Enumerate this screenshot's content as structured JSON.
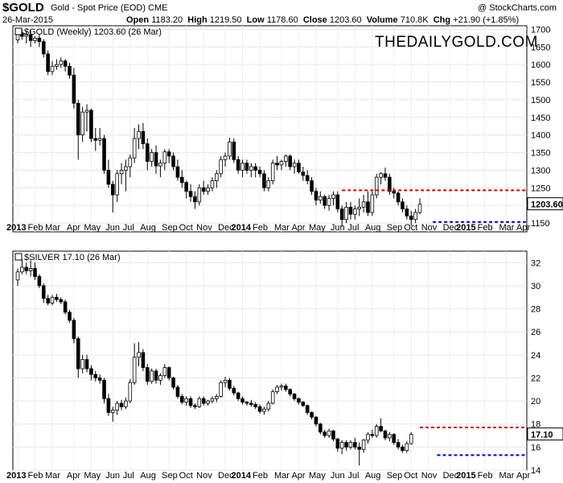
{
  "header": {
    "symbol": "$GOLD",
    "description": "Gold - Spot Price (EOD) CME",
    "copyright": "@ StockCharts.com",
    "date": "26-Mar-2015",
    "open_label": "Open",
    "open": "1183.20",
    "high_label": "High",
    "high": "1219.50",
    "low_label": "Low",
    "low": "1178.60",
    "close_label": "Close",
    "close": "1203.60",
    "volume_label": "Volume",
    "volume": "710.8K",
    "chg_label": "Chg",
    "chg": "+21.90 (+1.85%)"
  },
  "colors": {
    "up": "#ffffff",
    "down": "#000000",
    "resistance": "#cc0000",
    "support": "#0000cc",
    "grid": "#e6e6e6"
  },
  "chart_data": [
    {
      "type": "candlestick",
      "legend": "$GOLD (Weekly) 1203.60 (26 Mar)",
      "watermark": "THEDAILYGOLD.COM",
      "last_value_label": "1203.60",
      "ylim": [
        1125,
        1710
      ],
      "yticks": [
        1150,
        1200,
        1250,
        1300,
        1350,
        1400,
        1450,
        1500,
        1550,
        1600,
        1650,
        1700
      ],
      "x_labels": [
        "2013",
        "Feb",
        "Mar",
        "Apr",
        "May",
        "Jun",
        "Jul",
        "Aug",
        "Sep",
        "Oct",
        "Nov",
        "Dec",
        "2014",
        "Feb",
        "Mar",
        "Apr",
        "May",
        "Jun",
        "Jul",
        "Aug",
        "Sep",
        "Oct",
        "Nov",
        "Dec",
        "2015",
        "Feb",
        "Mar",
        "Apr"
      ],
      "resistance": 1243,
      "support": 1153,
      "ohlc": [
        [
          1670,
          1695,
          1660,
          1690
        ],
        [
          1690,
          1700,
          1670,
          1680
        ],
        [
          1680,
          1695,
          1660,
          1685
        ],
        [
          1685,
          1696,
          1650,
          1668
        ],
        [
          1668,
          1680,
          1660,
          1675
        ],
        [
          1675,
          1685,
          1650,
          1665
        ],
        [
          1665,
          1672,
          1620,
          1630
        ],
        [
          1630,
          1640,
          1570,
          1580
        ],
        [
          1580,
          1610,
          1570,
          1595
        ],
        [
          1595,
          1615,
          1585,
          1600
        ],
        [
          1600,
          1620,
          1590,
          1610
        ],
        [
          1610,
          1615,
          1580,
          1595
        ],
        [
          1595,
          1605,
          1560,
          1570
        ],
        [
          1570,
          1590,
          1475,
          1490
        ],
        [
          1490,
          1500,
          1330,
          1400
        ],
        [
          1400,
          1480,
          1380,
          1465
        ],
        [
          1465,
          1487,
          1410,
          1470
        ],
        [
          1470,
          1475,
          1380,
          1390
        ],
        [
          1390,
          1420,
          1355,
          1385
        ],
        [
          1385,
          1420,
          1370,
          1390
        ],
        [
          1390,
          1400,
          1290,
          1300
        ],
        [
          1300,
          1330,
          1250,
          1260
        ],
        [
          1260,
          1270,
          1180,
          1230
        ],
        [
          1230,
          1300,
          1210,
          1290
        ],
        [
          1290,
          1320,
          1260,
          1300
        ],
        [
          1300,
          1330,
          1240,
          1310
        ],
        [
          1310,
          1345,
          1280,
          1335
        ],
        [
          1335,
          1420,
          1320,
          1390
        ],
        [
          1390,
          1430,
          1360,
          1410
        ],
        [
          1410,
          1434,
          1360,
          1375
        ],
        [
          1375,
          1390,
          1300,
          1325
        ],
        [
          1325,
          1360,
          1310,
          1350
        ],
        [
          1350,
          1370,
          1290,
          1312
        ],
        [
          1312,
          1330,
          1280,
          1320
        ],
        [
          1320,
          1360,
          1300,
          1352
        ],
        [
          1352,
          1360,
          1320,
          1340
        ],
        [
          1340,
          1350,
          1300,
          1310
        ],
        [
          1310,
          1330,
          1270,
          1280
        ],
        [
          1280,
          1300,
          1250,
          1265
        ],
        [
          1265,
          1270,
          1220,
          1240
        ],
        [
          1240,
          1260,
          1210,
          1225
        ],
        [
          1225,
          1240,
          1190,
          1210
        ],
        [
          1210,
          1260,
          1200,
          1250
        ],
        [
          1250,
          1270,
          1230,
          1240
        ],
        [
          1240,
          1260,
          1230,
          1250
        ],
        [
          1250,
          1280,
          1240,
          1270
        ],
        [
          1270,
          1300,
          1250,
          1290
        ],
        [
          1290,
          1340,
          1280,
          1330
        ],
        [
          1330,
          1350,
          1310,
          1340
        ],
        [
          1340,
          1392,
          1330,
          1380
        ],
        [
          1380,
          1390,
          1320,
          1330
        ],
        [
          1330,
          1340,
          1290,
          1300
        ],
        [
          1300,
          1330,
          1280,
          1320
        ],
        [
          1320,
          1330,
          1290,
          1300
        ],
        [
          1300,
          1320,
          1280,
          1310
        ],
        [
          1310,
          1320,
          1280,
          1300
        ],
        [
          1300,
          1310,
          1280,
          1290
        ],
        [
          1290,
          1300,
          1240,
          1250
        ],
        [
          1250,
          1280,
          1240,
          1270
        ],
        [
          1270,
          1330,
          1260,
          1320
        ],
        [
          1320,
          1340,
          1300,
          1315
        ],
        [
          1315,
          1330,
          1300,
          1325
        ],
        [
          1325,
          1345,
          1310,
          1340
        ],
        [
          1340,
          1345,
          1300,
          1310
        ],
        [
          1310,
          1330,
          1290,
          1320
        ],
        [
          1320,
          1330,
          1290,
          1295
        ],
        [
          1295,
          1310,
          1270,
          1285
        ],
        [
          1285,
          1300,
          1260,
          1270
        ],
        [
          1270,
          1280,
          1230,
          1240
        ],
        [
          1240,
          1250,
          1200,
          1215
        ],
        [
          1215,
          1240,
          1205,
          1225
        ],
        [
          1225,
          1230,
          1190,
          1200
        ],
        [
          1200,
          1230,
          1185,
          1220
        ],
        [
          1220,
          1240,
          1200,
          1230
        ],
        [
          1230,
          1240,
          1180,
          1190
        ],
        [
          1190,
          1200,
          1140,
          1160
        ],
        [
          1160,
          1210,
          1150,
          1195
        ],
        [
          1195,
          1210,
          1160,
          1175
        ],
        [
          1175,
          1200,
          1160,
          1190
        ],
        [
          1190,
          1220,
          1170,
          1195
        ],
        [
          1195,
          1230,
          1180,
          1210
        ],
        [
          1210,
          1240,
          1170,
          1180
        ],
        [
          1180,
          1240,
          1170,
          1230
        ],
        [
          1230,
          1290,
          1220,
          1280
        ],
        [
          1280,
          1295,
          1260,
          1290
        ],
        [
          1290,
          1307,
          1270,
          1280
        ],
        [
          1280,
          1290,
          1230,
          1240
        ],
        [
          1240,
          1250,
          1220,
          1235
        ],
        [
          1235,
          1240,
          1200,
          1210
        ],
        [
          1210,
          1220,
          1180,
          1190
        ],
        [
          1190,
          1200,
          1160,
          1170
        ],
        [
          1170,
          1185,
          1143,
          1160
        ],
        [
          1160,
          1190,
          1150,
          1180
        ],
        [
          1180,
          1220,
          1175,
          1203
        ]
      ]
    },
    {
      "type": "candlestick",
      "legend": "$SILVER 17.10 (26 Mar)",
      "last_value_label": "17.10",
      "ylim": [
        14,
        33
      ],
      "yticks": [
        14,
        16,
        18,
        20,
        22,
        24,
        26,
        28,
        30,
        32
      ],
      "x_labels": [
        "2013",
        "Feb",
        "Mar",
        "Apr",
        "May",
        "Jun",
        "Jul",
        "Aug",
        "Sep",
        "Oct",
        "Nov",
        "Dec",
        "2014",
        "Feb",
        "Mar",
        "Apr",
        "May",
        "Jun",
        "Jul",
        "Aug",
        "Sep",
        "Oct",
        "Nov",
        "Dec",
        "2015",
        "Feb",
        "Mar",
        "Apr"
      ],
      "resistance": 17.7,
      "support": 15.3,
      "ohlc": [
        [
          30.5,
          31.5,
          30.0,
          31.2
        ],
        [
          31.2,
          32.3,
          31.0,
          31.6
        ],
        [
          31.6,
          32.0,
          31.0,
          31.3
        ],
        [
          31.3,
          32.2,
          30.8,
          31.5
        ],
        [
          31.5,
          32.0,
          30.5,
          30.8
        ],
        [
          30.8,
          31.0,
          29.8,
          30.0
        ],
        [
          30.0,
          30.2,
          28.5,
          28.9
        ],
        [
          28.9,
          29.2,
          28.3,
          28.5
        ],
        [
          28.5,
          29.2,
          28.3,
          29.0
        ],
        [
          29.0,
          29.3,
          28.6,
          28.8
        ],
        [
          28.8,
          29.0,
          28.4,
          28.6
        ],
        [
          28.6,
          28.8,
          27.5,
          27.7
        ],
        [
          27.7,
          27.9,
          26.8,
          27.0
        ],
        [
          27.0,
          27.2,
          25.0,
          25.4
        ],
        [
          25.4,
          25.6,
          22.0,
          22.8
        ],
        [
          22.8,
          24.0,
          22.4,
          23.6
        ],
        [
          23.6,
          24.0,
          22.5,
          22.8
        ],
        [
          22.8,
          23.1,
          21.8,
          22.3
        ],
        [
          22.3,
          22.6,
          21.7,
          22.0
        ],
        [
          22.0,
          22.3,
          21.5,
          21.8
        ],
        [
          21.8,
          22.0,
          19.8,
          20.2
        ],
        [
          20.2,
          20.6,
          18.7,
          19.0
        ],
        [
          19.0,
          19.5,
          18.2,
          19.2
        ],
        [
          19.2,
          20.0,
          18.8,
          19.8
        ],
        [
          19.8,
          20.1,
          19.2,
          19.5
        ],
        [
          19.5,
          20.3,
          19.3,
          20.0
        ],
        [
          20.0,
          21.9,
          19.8,
          21.6
        ],
        [
          21.6,
          25.0,
          21.4,
          23.8
        ],
        [
          23.8,
          25.1,
          23.0,
          24.2
        ],
        [
          24.2,
          24.5,
          22.6,
          22.9
        ],
        [
          22.9,
          23.2,
          21.4,
          21.7
        ],
        [
          21.7,
          22.8,
          21.5,
          22.6
        ],
        [
          22.6,
          22.8,
          21.5,
          21.8
        ],
        [
          21.8,
          22.4,
          21.4,
          22.2
        ],
        [
          22.2,
          23.2,
          22.0,
          22.9
        ],
        [
          22.9,
          23.0,
          21.8,
          22.0
        ],
        [
          22.0,
          22.1,
          21.0,
          21.2
        ],
        [
          21.2,
          21.4,
          20.2,
          20.4
        ],
        [
          20.4,
          20.6,
          19.7,
          19.9
        ],
        [
          19.9,
          20.4,
          19.6,
          20.2
        ],
        [
          20.2,
          20.4,
          19.4,
          19.6
        ],
        [
          19.6,
          19.8,
          19.3,
          19.5
        ],
        [
          19.5,
          20.4,
          19.4,
          20.2
        ],
        [
          20.2,
          20.4,
          19.6,
          19.8
        ],
        [
          19.8,
          20.1,
          19.6,
          20.0
        ],
        [
          20.0,
          20.4,
          19.8,
          20.2
        ],
        [
          20.2,
          20.6,
          19.9,
          20.4
        ],
        [
          20.4,
          21.8,
          20.3,
          21.6
        ],
        [
          21.6,
          22.1,
          21.2,
          21.8
        ],
        [
          21.8,
          22.0,
          20.9,
          21.1
        ],
        [
          21.1,
          21.3,
          20.5,
          20.7
        ],
        [
          20.7,
          20.8,
          20.0,
          20.2
        ],
        [
          20.2,
          20.4,
          19.7,
          19.9
        ],
        [
          19.9,
          20.0,
          19.6,
          19.8
        ],
        [
          19.8,
          20.1,
          19.5,
          19.7
        ],
        [
          19.7,
          19.9,
          19.3,
          19.5
        ],
        [
          19.5,
          19.7,
          18.9,
          19.1
        ],
        [
          19.1,
          19.5,
          18.8,
          19.3
        ],
        [
          19.3,
          20.0,
          19.1,
          19.8
        ],
        [
          19.8,
          21.0,
          19.7,
          20.8
        ],
        [
          20.8,
          21.4,
          20.6,
          21.2
        ],
        [
          21.2,
          21.5,
          20.9,
          21.3
        ],
        [
          21.3,
          21.5,
          20.8,
          21.0
        ],
        [
          21.0,
          21.1,
          20.4,
          20.6
        ],
        [
          20.6,
          20.7,
          20.0,
          20.2
        ],
        [
          20.2,
          20.3,
          19.7,
          19.9
        ],
        [
          19.9,
          20.0,
          19.5,
          19.6
        ],
        [
          19.6,
          19.7,
          18.8,
          19.0
        ],
        [
          19.0,
          19.1,
          18.4,
          18.6
        ],
        [
          18.6,
          18.7,
          17.8,
          18.0
        ],
        [
          18.0,
          18.1,
          17.1,
          17.3
        ],
        [
          17.3,
          17.5,
          16.8,
          17.0
        ],
        [
          17.0,
          17.6,
          16.8,
          17.4
        ],
        [
          17.4,
          17.5,
          16.5,
          16.7
        ],
        [
          16.7,
          16.8,
          15.6,
          15.9
        ],
        [
          15.9,
          16.6,
          15.4,
          16.4
        ],
        [
          16.4,
          16.6,
          15.7,
          16.0
        ],
        [
          16.0,
          16.6,
          15.8,
          16.4
        ],
        [
          16.4,
          16.8,
          15.8,
          16.0
        ],
        [
          16.0,
          16.4,
          14.4,
          15.8
        ],
        [
          15.8,
          16.7,
          15.5,
          16.6
        ],
        [
          16.6,
          17.3,
          16.3,
          17.1
        ],
        [
          17.1,
          17.5,
          16.8,
          17.0
        ],
        [
          17.0,
          18.0,
          16.8,
          17.8
        ],
        [
          17.8,
          18.5,
          17.3,
          17.4
        ],
        [
          17.4,
          17.5,
          16.6,
          16.8
        ],
        [
          16.8,
          17.3,
          16.5,
          17.1
        ],
        [
          17.1,
          17.2,
          16.2,
          16.4
        ],
        [
          16.4,
          16.7,
          15.8,
          16.0
        ],
        [
          16.0,
          16.2,
          15.5,
          15.7
        ],
        [
          15.7,
          16.5,
          15.5,
          16.3
        ],
        [
          16.3,
          17.3,
          16.2,
          17.1
        ]
      ]
    }
  ]
}
